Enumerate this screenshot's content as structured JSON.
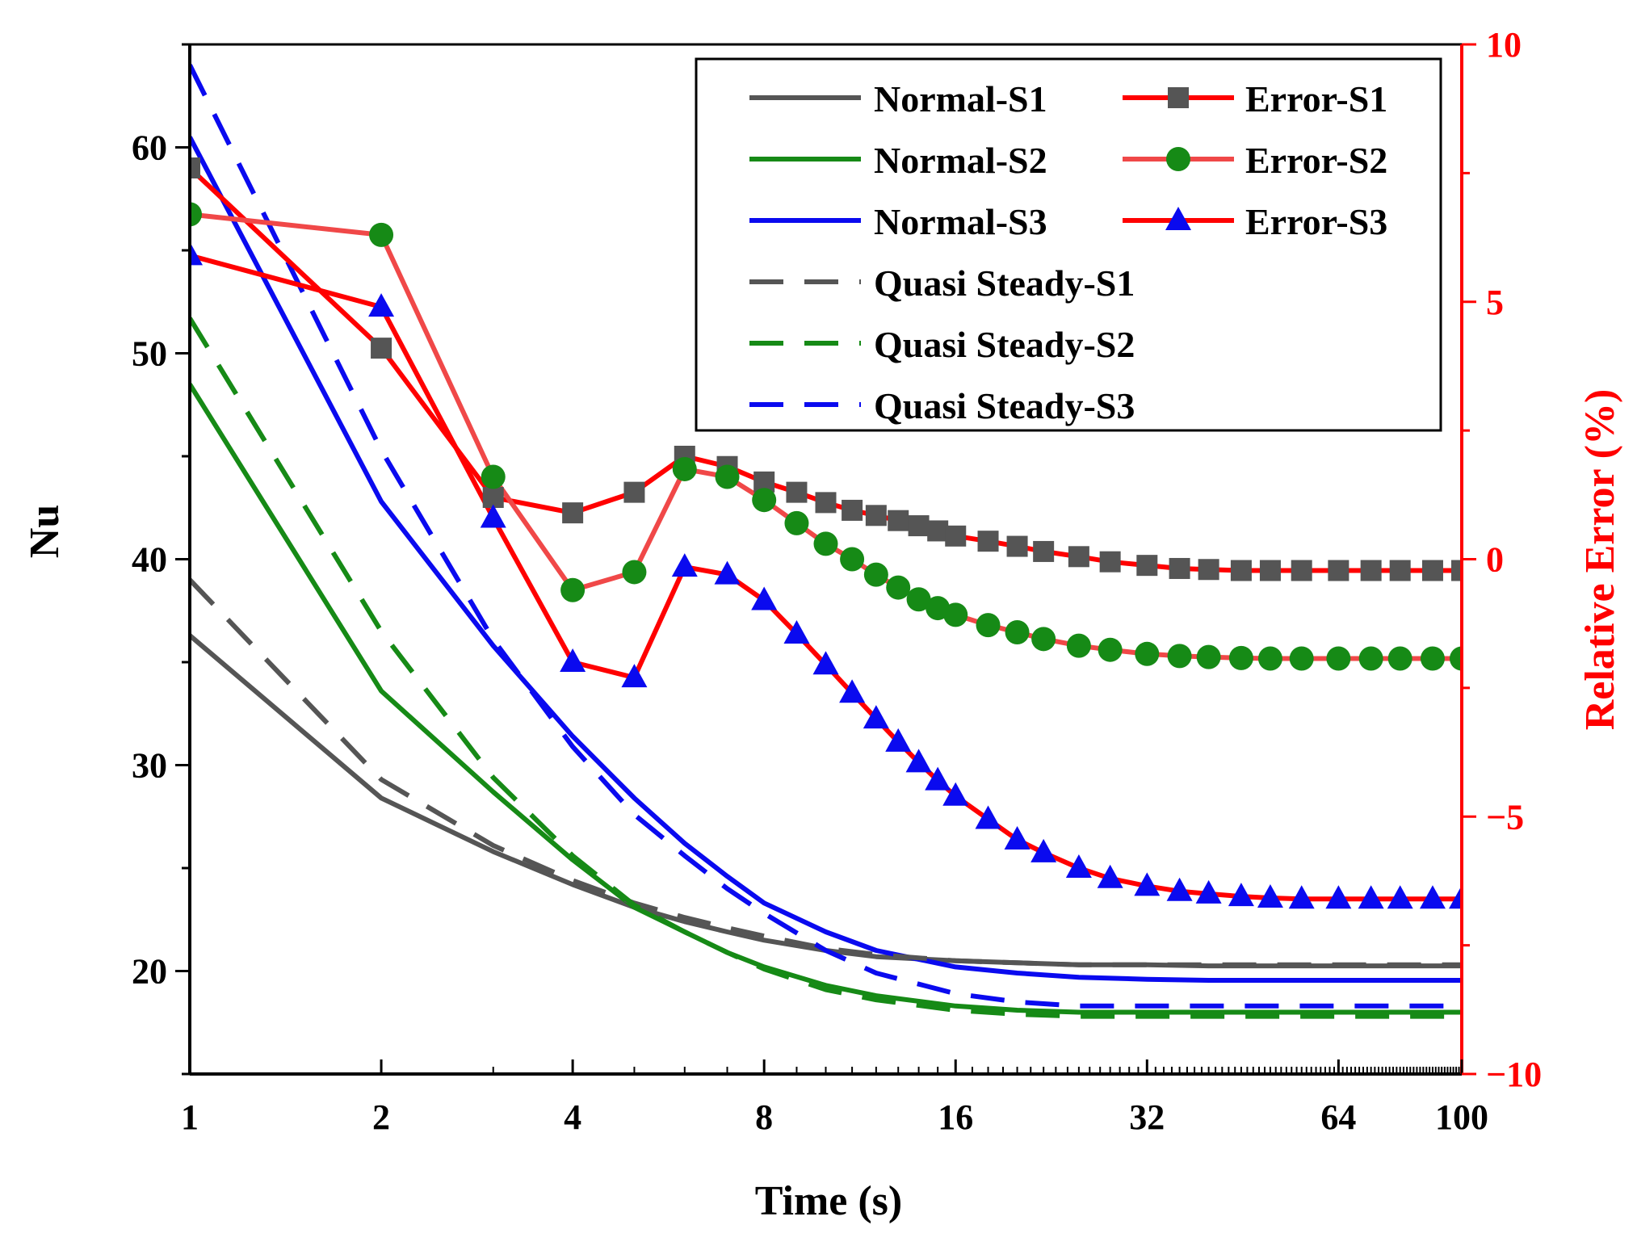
{
  "chart_data": {
    "type": "line",
    "xlabel": "Time (s)",
    "ylabel_left": "Nu",
    "ylabel_right": "Relative Error (%)",
    "x_scale": "log2",
    "xlim": [
      1,
      100
    ],
    "ylim_left": [
      15,
      65
    ],
    "ylim_right": [
      -10,
      10
    ],
    "x_ticks": [
      1,
      2,
      4,
      8,
      16,
      32,
      64,
      100
    ],
    "x_tick_labels": [
      "1",
      "2",
      "4",
      "8",
      "16",
      "32",
      "64",
      "100"
    ],
    "y_left_ticks": [
      20,
      30,
      40,
      50,
      60
    ],
    "y_left_tick_labels": [
      "20",
      "30",
      "40",
      "50",
      "60"
    ],
    "y_right_ticks": [
      -10,
      -5,
      0,
      5,
      10
    ],
    "y_right_tick_labels": [
      "−10",
      "−5",
      "0",
      "5",
      "10"
    ],
    "grid": false,
    "legend_position": "top-right",
    "series": [
      {
        "name": "Normal-S1",
        "axis": "left",
        "style": "solid",
        "color": "#555555",
        "marker": "none",
        "x": [
          1,
          2,
          3,
          4,
          5,
          6,
          7,
          8,
          10,
          12,
          16,
          20,
          25,
          32,
          40,
          50,
          64,
          80,
          100
        ],
        "y": [
          36.3,
          28.4,
          25.8,
          24.2,
          23.1,
          22.4,
          21.9,
          21.5,
          21.0,
          20.7,
          20.5,
          20.4,
          20.3,
          20.3,
          20.25,
          20.25,
          20.25,
          20.25,
          20.25
        ]
      },
      {
        "name": "Normal-S2",
        "axis": "left",
        "style": "solid",
        "color": "#168a16",
        "marker": "none",
        "x": [
          1,
          2,
          3,
          4,
          5,
          6,
          7,
          8,
          10,
          12,
          16,
          20,
          25,
          32,
          40,
          50,
          64,
          80,
          100
        ],
        "y": [
          48.5,
          33.6,
          28.7,
          25.4,
          23.1,
          21.9,
          20.9,
          20.2,
          19.3,
          18.8,
          18.3,
          18.1,
          18.0,
          18.0,
          18.0,
          18.0,
          18.0,
          18.0,
          18.0
        ]
      },
      {
        "name": "Normal-S3",
        "axis": "left",
        "style": "solid",
        "color": "#0a0aef",
        "marker": "none",
        "x": [
          1,
          2,
          3,
          4,
          5,
          6,
          7,
          8,
          10,
          12,
          16,
          20,
          25,
          32,
          40,
          50,
          64,
          80,
          100
        ],
        "y": [
          60.5,
          42.8,
          35.8,
          31.4,
          28.4,
          26.2,
          24.6,
          23.3,
          21.9,
          21.0,
          20.2,
          19.9,
          19.7,
          19.6,
          19.55,
          19.55,
          19.55,
          19.55,
          19.55
        ]
      },
      {
        "name": "Quasi Steady-S1",
        "axis": "left",
        "style": "dashed",
        "color": "#555555",
        "marker": "none",
        "x": [
          1,
          2,
          3,
          4,
          5,
          6,
          7,
          8,
          10,
          12,
          16,
          20,
          25,
          32,
          40,
          50,
          64,
          80,
          100
        ],
        "y": [
          39.0,
          29.3,
          26.1,
          24.4,
          23.3,
          22.6,
          22.1,
          21.7,
          21.1,
          20.8,
          20.5,
          20.4,
          20.3,
          20.3,
          20.3,
          20.3,
          20.3,
          20.3,
          20.3
        ]
      },
      {
        "name": "Quasi Steady-S2",
        "axis": "left",
        "style": "dashed",
        "color": "#168a16",
        "marker": "none",
        "x": [
          1,
          2,
          3,
          4,
          5,
          6,
          7,
          8,
          10,
          12,
          16,
          20,
          25,
          32,
          40,
          50,
          64,
          80,
          100
        ],
        "y": [
          51.7,
          36.5,
          29.4,
          25.6,
          23.2,
          21.9,
          20.9,
          20.1,
          19.1,
          18.6,
          18.1,
          17.9,
          17.8,
          17.8,
          17.8,
          17.8,
          17.8,
          17.8,
          17.8
        ]
      },
      {
        "name": "Quasi Steady-S3",
        "axis": "left",
        "style": "dashed",
        "color": "#0a0aef",
        "marker": "none",
        "x": [
          1,
          2,
          3,
          4,
          5,
          6,
          7,
          8,
          10,
          12,
          16,
          20,
          25,
          32,
          40,
          50,
          64,
          80,
          100
        ],
        "y": [
          64.0,
          45.3,
          36.1,
          30.9,
          27.6,
          25.6,
          24.0,
          22.8,
          21.0,
          19.9,
          18.9,
          18.5,
          18.3,
          18.3,
          18.3,
          18.3,
          18.3,
          18.3,
          18.3
        ]
      },
      {
        "name": "Error-S1",
        "axis": "right",
        "style": "solid",
        "color": "#ff0000",
        "marker": "square",
        "marker_color": "#555555",
        "x": [
          1,
          2,
          3,
          4,
          5,
          6,
          7,
          8,
          9,
          10,
          11,
          12,
          13,
          14,
          15,
          16,
          18,
          20,
          22,
          25,
          28,
          32,
          36,
          40,
          45,
          50,
          56,
          64,
          72,
          80,
          90,
          100
        ],
        "y": [
          7.6,
          4.1,
          1.2,
          0.9,
          1.3,
          2.0,
          1.8,
          1.5,
          1.3,
          1.1,
          0.95,
          0.85,
          0.75,
          0.65,
          0.55,
          0.45,
          0.35,
          0.25,
          0.15,
          0.05,
          -0.05,
          -0.12,
          -0.18,
          -0.2,
          -0.22,
          -0.22,
          -0.22,
          -0.22,
          -0.22,
          -0.22,
          -0.22,
          -0.22
        ]
      },
      {
        "name": "Error-S2",
        "axis": "right",
        "style": "solid",
        "color": "#f04848",
        "marker": "circle",
        "marker_color": "#168a16",
        "x": [
          1,
          2,
          3,
          4,
          5,
          6,
          7,
          8,
          9,
          10,
          11,
          12,
          13,
          14,
          15,
          16,
          18,
          20,
          22,
          25,
          28,
          32,
          36,
          40,
          45,
          50,
          56,
          64,
          72,
          80,
          90,
          100
        ],
        "y": [
          6.7,
          6.3,
          1.6,
          -0.6,
          -0.25,
          1.75,
          1.6,
          1.15,
          0.7,
          0.3,
          0.0,
          -0.3,
          -0.55,
          -0.78,
          -0.95,
          -1.08,
          -1.28,
          -1.42,
          -1.55,
          -1.68,
          -1.76,
          -1.84,
          -1.88,
          -1.9,
          -1.92,
          -1.93,
          -1.93,
          -1.93,
          -1.93,
          -1.93,
          -1.93,
          -1.93
        ]
      },
      {
        "name": "Error-S3",
        "axis": "right",
        "style": "solid",
        "color": "#ff0000",
        "marker": "triangle",
        "marker_color": "#0a0aef",
        "x": [
          1,
          2,
          3,
          4,
          5,
          6,
          7,
          8,
          9,
          10,
          11,
          12,
          13,
          14,
          15,
          16,
          18,
          20,
          22,
          25,
          28,
          32,
          36,
          40,
          45,
          50,
          56,
          64,
          72,
          80,
          90,
          100
        ],
        "y": [
          5.9,
          4.9,
          0.8,
          -2.0,
          -2.3,
          -0.15,
          -0.3,
          -0.8,
          -1.45,
          -2.05,
          -2.6,
          -3.1,
          -3.55,
          -3.95,
          -4.3,
          -4.6,
          -5.05,
          -5.45,
          -5.7,
          -6.0,
          -6.2,
          -6.35,
          -6.45,
          -6.5,
          -6.55,
          -6.58,
          -6.6,
          -6.6,
          -6.6,
          -6.6,
          -6.6,
          -6.6
        ]
      }
    ]
  }
}
